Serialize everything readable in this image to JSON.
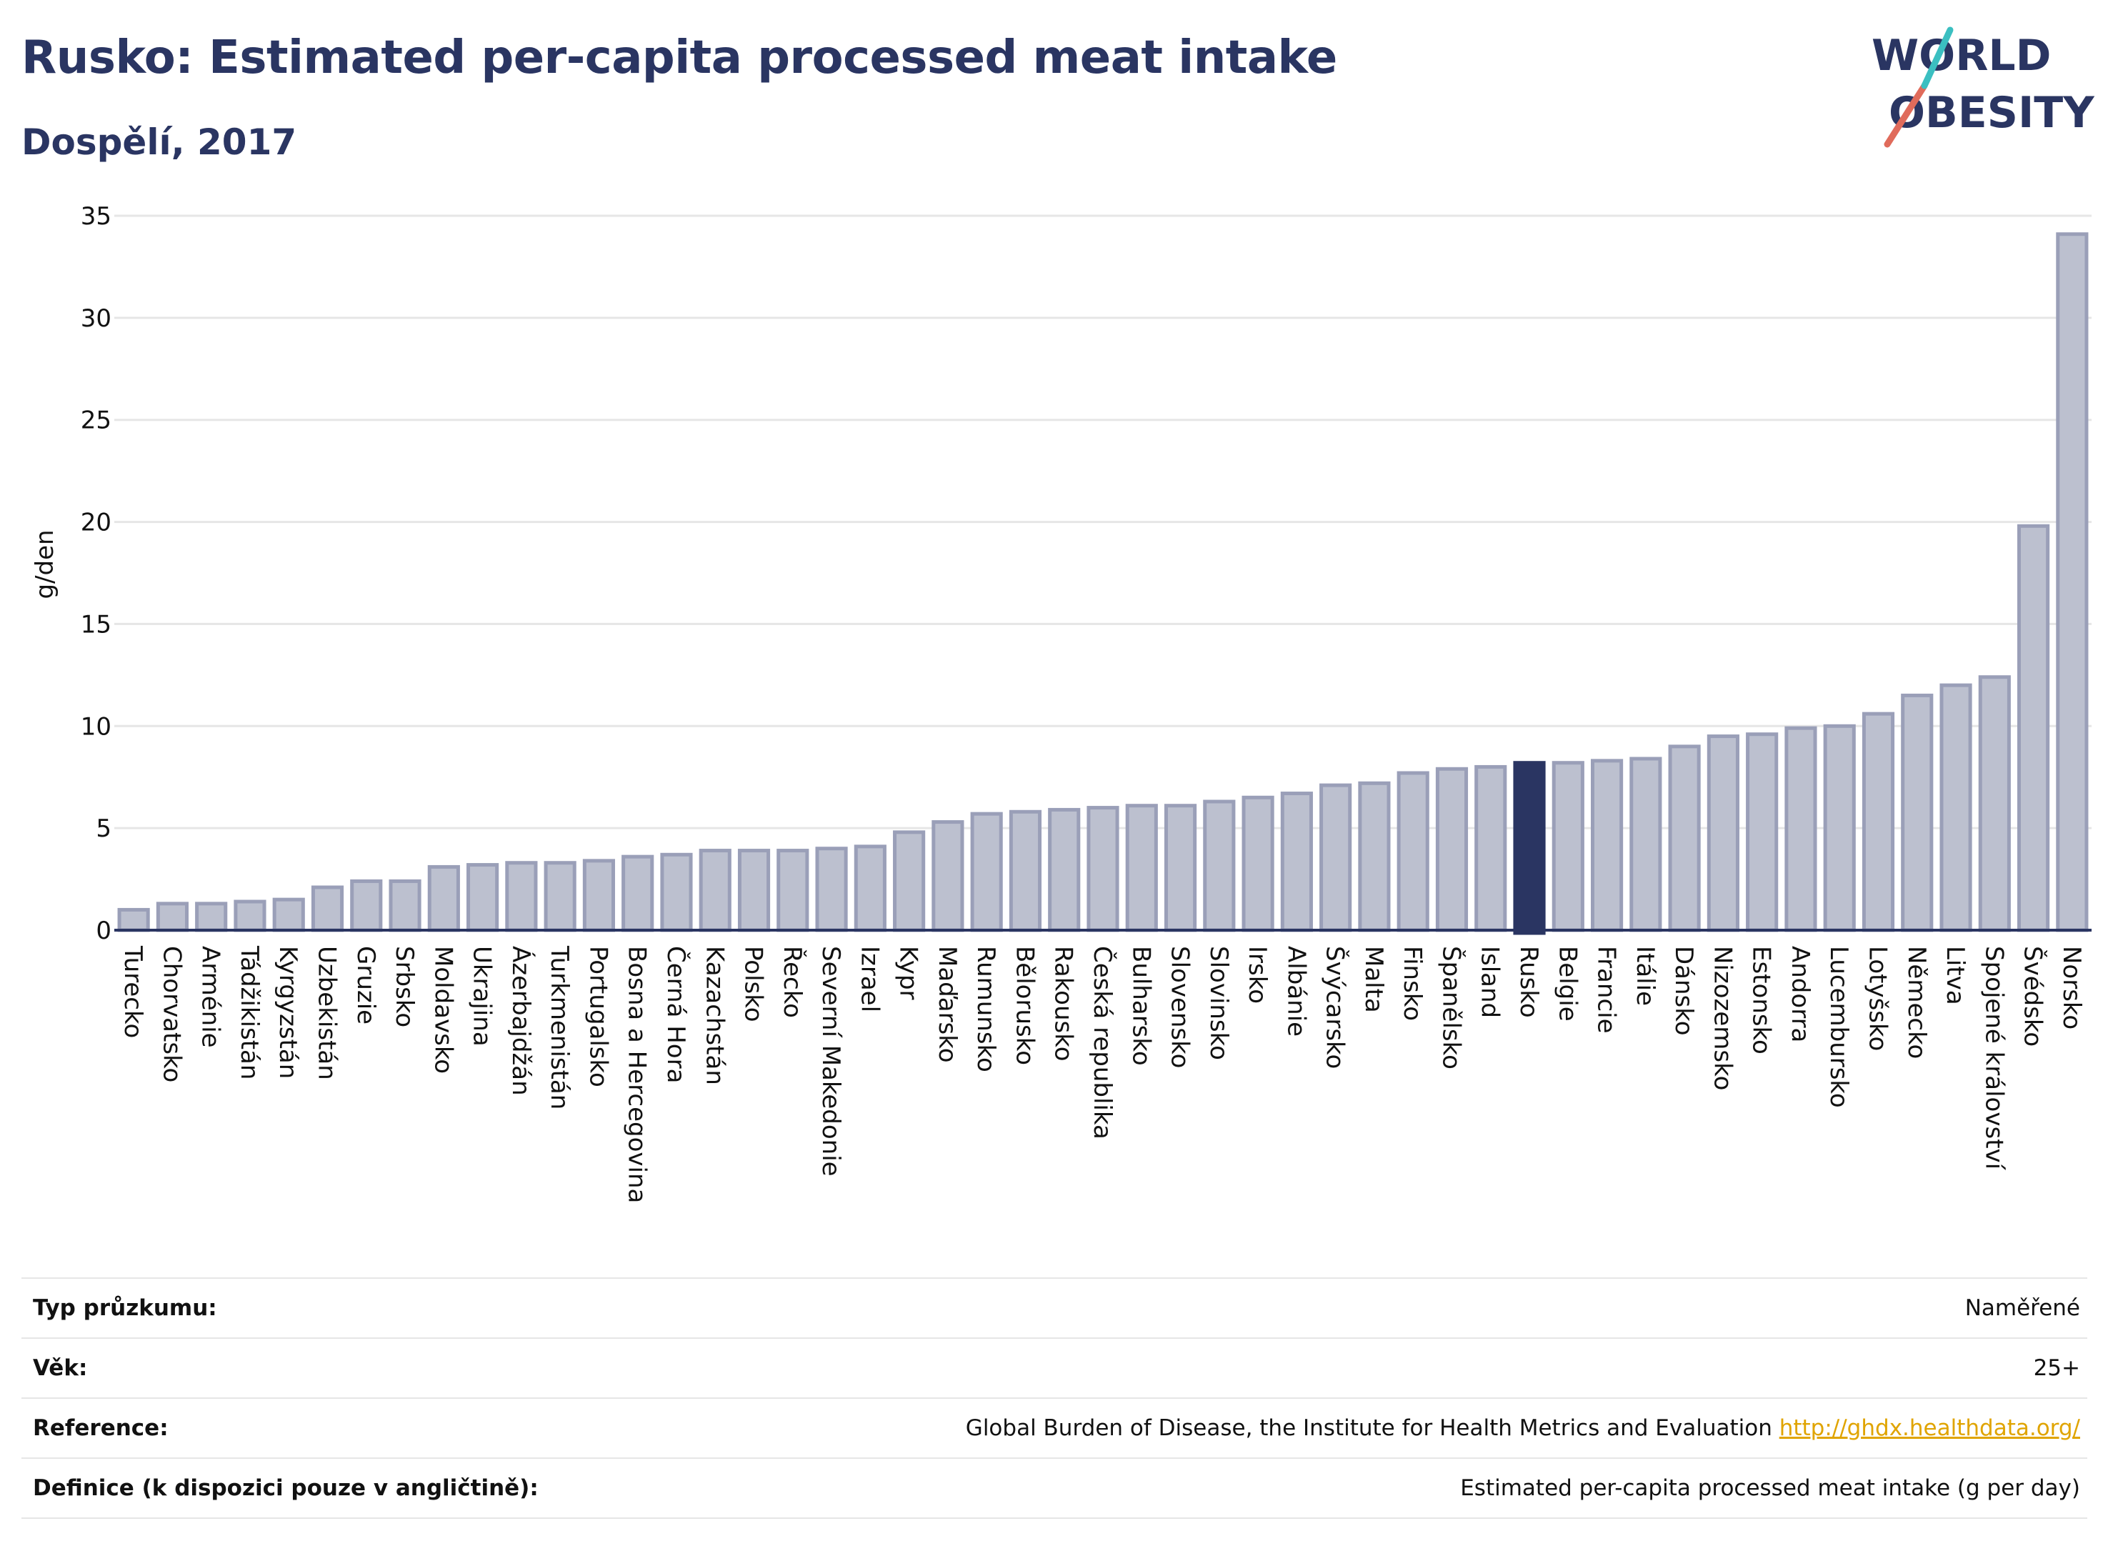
{
  "header": {
    "title": "Rusko: Estimated per-capita processed meat intake",
    "subtitle": "Dospělí, 2017"
  },
  "logo": {
    "line1": "WORLD",
    "line2": "OBESITY",
    "text_color": "#2a3562",
    "slash_colors": [
      "#e06b5b",
      "#3bbfc1"
    ]
  },
  "colors": {
    "bar": "#bcc0cf",
    "bar_stroke": "#9a9fb8",
    "highlight": "#2a3562",
    "grid": "#e6e6e6",
    "axis": "#2a3562"
  },
  "chart_data": {
    "type": "bar",
    "ylabel": "g/den",
    "ylim": [
      0,
      35
    ],
    "yticks": [
      0,
      5,
      10,
      15,
      20,
      25,
      30,
      35
    ],
    "grid": true,
    "highlight": "Rusko",
    "categories": [
      "Turecko",
      "Chorvatsko",
      "Arménie",
      "Tádžikistán",
      "Kyrgyzstán",
      "Uzbekistán",
      "Gruzie",
      "Srbsko",
      "Moldavsko",
      "Ukrajina",
      "Ázerbajdžán",
      "Turkmenistán",
      "Portugalsko",
      "Bosna a Hercegovina",
      "Černá Hora",
      "Kazachstán",
      "Polsko",
      "Řecko",
      "Severní Makedonie",
      "Izrael",
      "Kypr",
      "Maďarsko",
      "Rumunsko",
      "Bělorusko",
      "Rakousko",
      "Česká republika",
      "Bulharsko",
      "Slovensko",
      "Slovinsko",
      "Irsko",
      "Albánie",
      "Švýcarsko",
      "Malta",
      "Finsko",
      "Španělsko",
      "Island",
      "Rusko",
      "Belgie",
      "Francie",
      "Itálie",
      "Dánsko",
      "Nizozemsko",
      "Estonsko",
      "Andorra",
      "Lucembursko",
      "Lotyšsko",
      "Německo",
      "Litva",
      "Spojené království",
      "Švédsko",
      "Norsko"
    ],
    "values": [
      1.0,
      1.3,
      1.3,
      1.4,
      1.5,
      2.1,
      2.4,
      2.4,
      3.1,
      3.2,
      3.3,
      3.3,
      3.4,
      3.6,
      3.7,
      3.9,
      3.9,
      3.9,
      4.0,
      4.1,
      4.8,
      5.3,
      5.7,
      5.8,
      5.9,
      6.0,
      6.1,
      6.1,
      6.3,
      6.5,
      6.7,
      7.1,
      7.2,
      7.7,
      7.9,
      8.0,
      8.2,
      8.2,
      8.3,
      8.4,
      9.0,
      9.5,
      9.6,
      9.9,
      10.0,
      10.6,
      11.5,
      12.0,
      12.4,
      19.8,
      34.1
    ]
  },
  "info": {
    "rows": [
      {
        "label": "Typ průzkumu:",
        "value": "Naměřené",
        "link": ""
      },
      {
        "label": "Věk:",
        "value": "25+",
        "link": ""
      },
      {
        "label": "Reference:",
        "value": "Global Burden of Disease, the Institute for Health Metrics and Evaluation",
        "link": "http://ghdx.healthdata.org/"
      },
      {
        "label": "Definice (k dispozici pouze v angličtině):",
        "value": "Estimated per-capita processed meat intake (g per day)",
        "link": ""
      }
    ]
  }
}
